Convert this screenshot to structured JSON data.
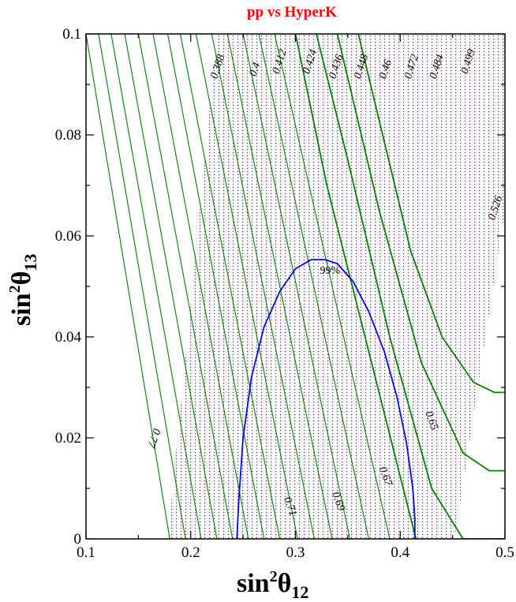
{
  "chart_data": {
    "type": "line",
    "title": "pp vs HyperK",
    "xlabel": {
      "base": "sin",
      "sup": "2",
      "symbol": "θ",
      "sub": "12"
    },
    "ylabel": {
      "base": "sin",
      "sup": "2",
      "symbol": "θ",
      "sub": "13"
    },
    "xlim": [
      0.1,
      0.5
    ],
    "ylim": [
      0,
      0.1
    ],
    "x_ticks": [
      0.1,
      0.2,
      0.3,
      0.4,
      0.5
    ],
    "x_tick_labels": [
      "0.1",
      "0.2",
      "0.3",
      "0.4",
      "0.5"
    ],
    "y_ticks": [
      0,
      0.02,
      0.04,
      0.06,
      0.08,
      0.1
    ],
    "y_tick_labels": [
      "0",
      "0.02",
      "0.04",
      "0.06",
      "0.08",
      "0.1"
    ],
    "grid": false,
    "colors": {
      "title": "#ff0000",
      "green_contours": "#008000",
      "blue_region": "#0000ff",
      "dotted_contours": "#8b1a5a"
    },
    "dotted_region": {
      "boundary": [
        [
          0.178,
          0
        ],
        [
          0.225,
          0.1
        ],
        [
          0.5,
          0.1
        ],
        [
          0.5,
          0.065
        ],
        [
          0.452,
          0
        ]
      ]
    },
    "dotted_contour_labels": [
      {
        "text": "0.388",
        "x": 0.225,
        "y": 0.091
      },
      {
        "text": "0.4",
        "x": 0.262,
        "y": 0.0915
      },
      {
        "text": "0.412",
        "x": 0.284,
        "y": 0.092
      },
      {
        "text": "0.424",
        "x": 0.313,
        "y": 0.092
      },
      {
        "text": "0.436",
        "x": 0.338,
        "y": 0.091
      },
      {
        "text": "0.448",
        "x": 0.362,
        "y": 0.091
      },
      {
        "text": "0.46",
        "x": 0.386,
        "y": 0.091
      },
      {
        "text": "0.472",
        "x": 0.41,
        "y": 0.091
      },
      {
        "text": "0.484",
        "x": 0.434,
        "y": 0.091
      },
      {
        "text": "0.499",
        "x": 0.464,
        "y": 0.092
      },
      {
        "text": "0.526",
        "x": 0.49,
        "y": 0.063
      }
    ],
    "green_contour_labels": [
      {
        "text": "0.77",
        "x": 0.165,
        "y": 0.022
      },
      {
        "text": "0.71",
        "x": 0.289,
        "y": 0.008
      },
      {
        "text": "0.69",
        "x": 0.335,
        "y": 0.009
      },
      {
        "text": "0.67",
        "x": 0.38,
        "y": 0.014
      },
      {
        "text": "0.65",
        "x": 0.424,
        "y": 0.025
      }
    ],
    "series": [
      {
        "x": [
          0.18,
          0.1
        ],
        "y": [
          0.0,
          0.1
        ]
      },
      {
        "x": [
          0.195,
          0.112
        ],
        "y": [
          0.0,
          0.1
        ]
      },
      {
        "x": [
          0.21,
          0.124
        ],
        "y": [
          0.0,
          0.1
        ]
      },
      {
        "x": [
          0.225,
          0.137
        ],
        "y": [
          0.0,
          0.1
        ]
      },
      {
        "x": [
          0.24,
          0.15
        ],
        "y": [
          0.0,
          0.1
        ]
      },
      {
        "x": [
          0.255,
          0.164
        ],
        "y": [
          0.0,
          0.1
        ]
      },
      {
        "x": [
          0.27,
          0.178
        ],
        "y": [
          0.0,
          0.1
        ]
      },
      {
        "x": [
          0.285,
          0.19
        ],
        "y": [
          0.0,
          0.1
        ]
      },
      {
        "x": [
          0.302,
          0.205
        ],
        "y": [
          0.0,
          0.1
        ]
      },
      {
        "x": [
          0.318,
          0.22
        ],
        "y": [
          0.0,
          0.1
        ]
      },
      {
        "x": [
          0.335,
          0.235
        ],
        "y": [
          0.0,
          0.1
        ]
      },
      {
        "x": [
          0.352,
          0.25
        ],
        "y": [
          0.0,
          0.1
        ]
      },
      {
        "x": [
          0.37,
          0.265
        ],
        "y": [
          0.0,
          0.1
        ]
      },
      {
        "x": [
          0.39,
          0.28
        ],
        "y": [
          0.0,
          0.1
        ]
      },
      {
        "x": [
          0.415,
          0.33,
          0.3
        ],
        "y": [
          0.0,
          0.07,
          0.1
        ]
      },
      {
        "x": [
          0.5,
          0.46,
          0.43,
          0.39,
          0.35,
          0.32
        ],
        "y": [
          0.0,
          0.0,
          0.01,
          0.04,
          0.075,
          0.1
        ]
      },
      {
        "x": [
          0.5,
          0.485,
          0.46,
          0.42,
          0.38,
          0.34
        ],
        "y": [
          0.0135,
          0.0135,
          0.017,
          0.035,
          0.065,
          0.1
        ]
      },
      {
        "x": [
          0.5,
          0.49,
          0.47,
          0.44,
          0.41,
          0.36
        ],
        "y": [
          0.029,
          0.029,
          0.031,
          0.04,
          0.057,
          0.1
        ]
      },
      {
        "name": "99%",
        "x": [
          0.244,
          0.246,
          0.25,
          0.258,
          0.27,
          0.285,
          0.3,
          0.315,
          0.328,
          0.34,
          0.355,
          0.37,
          0.385,
          0.397,
          0.406,
          0.412,
          0.414,
          0.414
        ],
        "y": [
          0.0,
          0.008,
          0.02,
          0.032,
          0.042,
          0.049,
          0.0535,
          0.0553,
          0.0553,
          0.0545,
          0.051,
          0.045,
          0.037,
          0.028,
          0.019,
          0.01,
          0.004,
          0.0
        ]
      }
    ]
  }
}
